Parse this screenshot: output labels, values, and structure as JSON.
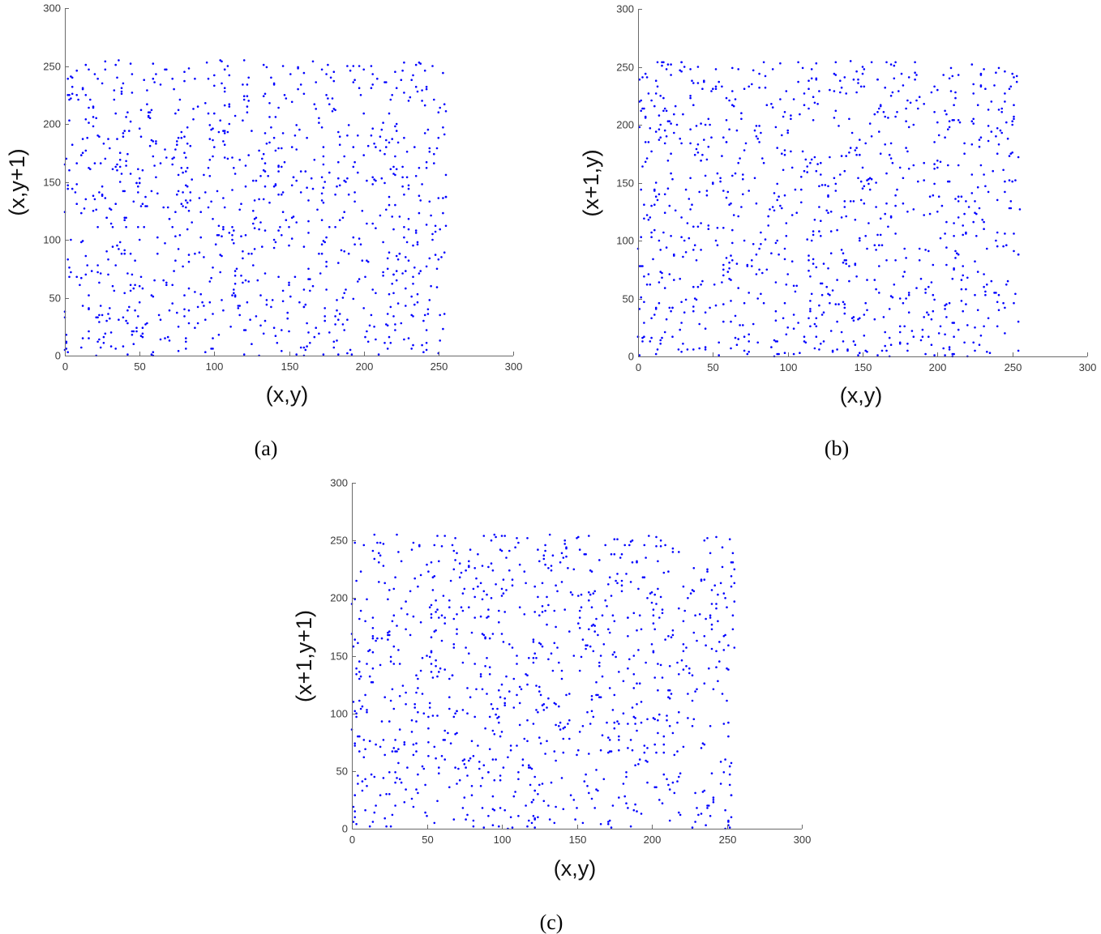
{
  "chart_data": [
    {
      "type": "scatter",
      "caption": "(a)",
      "xlabel": "(x,y)",
      "ylabel": "(x,y+1)",
      "xlim": [
        0,
        300
      ],
      "ylim": [
        0,
        300
      ],
      "xticks": [
        0,
        50,
        100,
        150,
        200,
        250,
        300
      ],
      "yticks": [
        0,
        50,
        100,
        150,
        200,
        250,
        300
      ],
      "grid": false,
      "marker_color": "#0000ff",
      "point_count": 1000,
      "point_value_range": [
        0,
        255
      ],
      "seed": 11
    },
    {
      "type": "scatter",
      "caption": "(b)",
      "xlabel": "(x,y)",
      "ylabel": "(x+1,y)",
      "xlim": [
        0,
        300
      ],
      "ylim": [
        0,
        300
      ],
      "xticks": [
        0,
        50,
        100,
        150,
        200,
        250,
        300
      ],
      "yticks": [
        0,
        50,
        100,
        150,
        200,
        250,
        300
      ],
      "grid": false,
      "marker_color": "#0000ff",
      "point_count": 1000,
      "point_value_range": [
        0,
        255
      ],
      "seed": 23
    },
    {
      "type": "scatter",
      "caption": "(c)",
      "xlabel": "(x,y)",
      "ylabel": "(x+1,y+1)",
      "xlim": [
        0,
        300
      ],
      "ylim": [
        0,
        300
      ],
      "xticks": [
        0,
        50,
        100,
        150,
        200,
        250,
        300
      ],
      "yticks": [
        0,
        50,
        100,
        150,
        200,
        250,
        300
      ],
      "grid": false,
      "marker_color": "#0000ff",
      "point_count": 1000,
      "point_value_range": [
        0,
        255
      ],
      "seed": 37
    }
  ]
}
